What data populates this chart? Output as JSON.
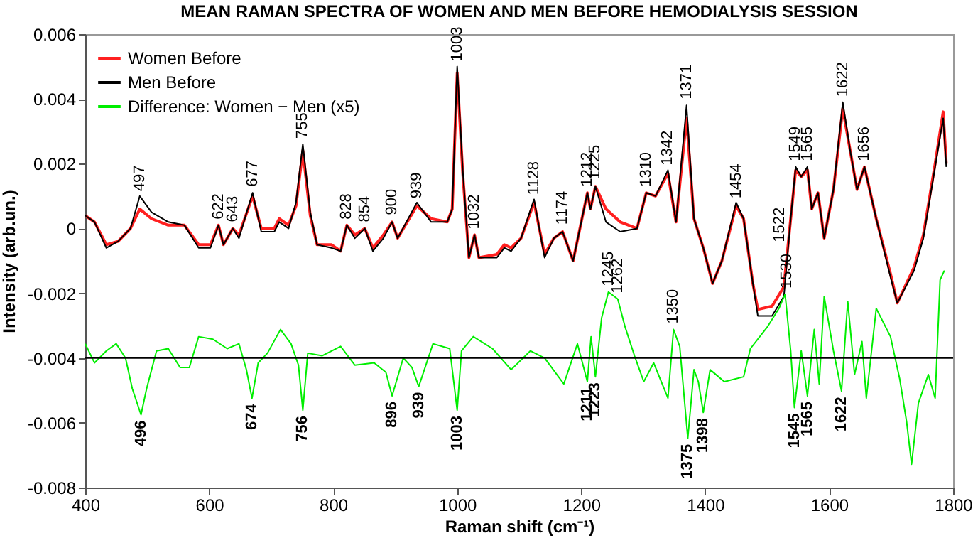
{
  "chart_data": {
    "type": "line",
    "title": "MEAN RAMAN SPECTRA OF WOMEN AND MEN BEFORE HEMODIALYSIS SESSION",
    "xlabel": "Raman shift (cm⁻¹)",
    "ylabel": "Intensity (arb.un.)",
    "xlim": [
      400,
      1800
    ],
    "xticks": [
      400,
      600,
      800,
      1000,
      1200,
      1400,
      1600,
      1800
    ],
    "ylim": [
      -0.008,
      0.006
    ],
    "yticks": [
      -0.008,
      -0.006,
      -0.004,
      -0.002,
      0,
      0.002,
      0.004,
      0.006
    ],
    "grid": false,
    "legend": "top left",
    "series": [
      {
        "name": "Women Before",
        "color": "#ff2020",
        "x": [
          400,
          415,
          434,
          453,
          473,
          488,
          507,
          534,
          560,
          583,
          602,
          615,
          623,
          638,
          648,
          670,
          684,
          705,
          713,
          728,
          740,
          751,
          763,
          774,
          797,
          812,
          822,
          835,
          851,
          864,
          881,
          895,
          904,
          935,
          958,
          984,
          992,
          1000,
          1009,
          1019,
          1028,
          1035,
          1064,
          1076,
          1087,
          1103,
          1124,
          1141,
          1156,
          1170,
          1187,
          1210,
          1215,
          1223,
          1240,
          1263,
          1290,
          1305,
          1320,
          1340,
          1353,
          1370,
          1382,
          1397,
          1412,
          1427,
          1450,
          1462,
          1477,
          1485,
          1508,
          1527,
          1538,
          1546,
          1555,
          1565,
          1572,
          1582,
          1592,
          1607,
          1622,
          1634,
          1645,
          1657,
          1676,
          1699,
          1710,
          1737,
          1752,
          1771,
          1784,
          1789
        ],
        "values": [
          0.0004,
          0.0002,
          -0.0005,
          -0.0004,
          0.0,
          0.0006,
          0.0003,
          0.0001,
          0.0001,
          -0.0005,
          -0.0005,
          0.0001,
          -0.0005,
          0.0,
          -0.0002,
          0.001,
          0.0,
          0.0,
          0.0003,
          0.0001,
          0.0007,
          0.0024,
          0.0004,
          -0.0005,
          -0.0005,
          -0.0007,
          0.0001,
          -0.0002,
          0.0,
          -0.0006,
          -0.0002,
          0.0002,
          -0.0003,
          0.0007,
          0.0003,
          0.0002,
          0.0006,
          0.0048,
          0.0017,
          -0.0009,
          -0.0002,
          -0.0009,
          -0.0008,
          -0.0005,
          -0.0006,
          -0.0003,
          0.0008,
          -0.0008,
          -0.0003,
          -0.0001,
          -0.001,
          0.0011,
          0.0006,
          0.0013,
          0.0006,
          0.0002,
          0.0,
          0.0011,
          0.001,
          0.0017,
          0.0002,
          0.0034,
          0.0003,
          -0.0006,
          -0.0017,
          -0.001,
          0.0007,
          0.0003,
          -0.0017,
          -0.0025,
          -0.0024,
          -0.0018,
          0.0003,
          0.0018,
          0.0016,
          0.0018,
          0.0006,
          0.0011,
          -0.0003,
          0.0012,
          0.0037,
          0.0024,
          0.0012,
          0.0019,
          0.0003,
          -0.0014,
          -0.0023,
          -0.0012,
          -0.0002,
          0.002,
          0.0036,
          0.002
        ]
      },
      {
        "name": "Men Before",
        "color": "#000000",
        "x": [
          400,
          415,
          434,
          453,
          473,
          488,
          507,
          534,
          560,
          583,
          602,
          615,
          623,
          638,
          648,
          670,
          684,
          705,
          713,
          728,
          740,
          751,
          763,
          774,
          797,
          812,
          822,
          835,
          851,
          864,
          881,
          895,
          904,
          935,
          958,
          984,
          992,
          1000,
          1009,
          1019,
          1028,
          1035,
          1064,
          1076,
          1087,
          1103,
          1124,
          1141,
          1156,
          1170,
          1187,
          1210,
          1215,
          1223,
          1240,
          1263,
          1290,
          1305,
          1320,
          1340,
          1353,
          1370,
          1382,
          1397,
          1412,
          1427,
          1450,
          1462,
          1477,
          1485,
          1508,
          1527,
          1538,
          1546,
          1555,
          1565,
          1572,
          1582,
          1592,
          1607,
          1622,
          1634,
          1645,
          1657,
          1676,
          1699,
          1710,
          1737,
          1752,
          1771,
          1784,
          1789
        ],
        "values": [
          0.0004,
          0.0002,
          -0.0006,
          -0.0004,
          0.0,
          0.001,
          0.0005,
          0.0002,
          0.0001,
          -0.0006,
          -0.0006,
          0.0001,
          -0.0005,
          0.0,
          -0.0003,
          0.0011,
          -0.0001,
          -0.0001,
          0.0002,
          0.0,
          0.0008,
          0.0026,
          0.0005,
          -0.0005,
          -0.0006,
          -0.0007,
          0.0001,
          -0.0003,
          0.0,
          -0.0007,
          -0.0003,
          0.0002,
          -0.0003,
          0.0008,
          0.0002,
          0.0002,
          0.0006,
          0.005,
          0.0018,
          -0.0009,
          -0.0002,
          -0.0009,
          -0.0009,
          -0.0006,
          -0.0007,
          -0.0003,
          0.0009,
          -0.0009,
          -0.0003,
          -0.0001,
          -0.001,
          0.0011,
          0.0006,
          0.0013,
          0.0002,
          -0.0001,
          0.0,
          0.0011,
          0.001,
          0.0018,
          0.0002,
          0.0038,
          0.0003,
          -0.0006,
          -0.0017,
          -0.001,
          0.0008,
          0.0003,
          -0.0017,
          -0.0027,
          -0.0027,
          -0.0021,
          0.0003,
          0.0019,
          0.0016,
          0.0019,
          0.0006,
          0.0011,
          -0.0003,
          0.0012,
          0.0039,
          0.0024,
          0.0012,
          0.0019,
          0.0003,
          -0.0015,
          -0.0023,
          -0.0013,
          -0.0003,
          0.0019,
          0.0034,
          0.0019
        ]
      },
      {
        "name": "Difference: Women − Men (x5)",
        "color": "#00ee00",
        "x": [
          400,
          415,
          434,
          450,
          465,
          476,
          490,
          499,
          515,
          534,
          553,
          568,
          583,
          606,
          629,
          648,
          660,
          669,
          679,
          694,
          715,
          732,
          744,
          751,
          759,
          782,
          812,
          835,
          866,
          885,
          895,
          913,
          927,
          938,
          961,
          988,
          1000,
          1007,
          1026,
          1057,
          1087,
          1118,
          1141,
          1172,
          1194,
          1210,
          1216,
          1223,
          1233,
          1244,
          1259,
          1271,
          1286,
          1301,
          1317,
          1340,
          1349,
          1359,
          1372,
          1382,
          1389,
          1397,
          1408,
          1431,
          1462,
          1473,
          1500,
          1519,
          1529,
          1538,
          1544,
          1555,
          1565,
          1576,
          1584,
          1592,
          1607,
          1620,
          1630,
          1641,
          1653,
          1660,
          1676,
          1699,
          1714,
          1725,
          1733,
          1744,
          1760,
          1771,
          1779,
          1786
        ],
        "values": [
          -0.00356,
          -0.00415,
          -0.00378,
          -0.00356,
          -0.004,
          -0.00495,
          -0.00575,
          -0.00495,
          -0.00378,
          -0.00371,
          -0.00429,
          -0.00429,
          -0.00334,
          -0.00342,
          -0.00371,
          -0.00356,
          -0.00436,
          -0.00524,
          -0.00415,
          -0.00385,
          -0.00312,
          -0.00356,
          -0.00422,
          -0.00561,
          -0.00385,
          -0.00393,
          -0.00364,
          -0.00422,
          -0.00415,
          -0.00444,
          -0.00517,
          -0.004,
          -0.00429,
          -0.00488,
          -0.00356,
          -0.00371,
          -0.00561,
          -0.00378,
          -0.00334,
          -0.00371,
          -0.00436,
          -0.00378,
          -0.004,
          -0.0048,
          -0.00356,
          -0.00473,
          -0.00334,
          -0.00458,
          -0.00276,
          -0.00196,
          -0.00218,
          -0.00305,
          -0.00393,
          -0.00473,
          -0.00415,
          -0.00524,
          -0.00312,
          -0.00364,
          -0.00648,
          -0.00436,
          -0.00473,
          -0.00568,
          -0.00436,
          -0.00473,
          -0.00458,
          -0.00371,
          -0.00305,
          -0.00247,
          -0.00203,
          -0.00378,
          -0.00553,
          -0.00378,
          -0.00517,
          -0.00312,
          -0.0048,
          -0.0021,
          -0.00378,
          -0.00502,
          -0.00225,
          -0.00451,
          -0.00349,
          -0.00524,
          -0.00247,
          -0.00334,
          -0.00466,
          -0.00597,
          -0.00728,
          -0.00539,
          -0.00451,
          -0.00524,
          -0.00159,
          -0.0013
        ]
      }
    ],
    "ref_lines": [
      {
        "axis": "y",
        "value": -0.004,
        "color": "#000000"
      }
    ],
    "annotations": [
      {
        "text": "497",
        "x": 488,
        "y": 0.00097
      },
      {
        "text": "622",
        "x": 615,
        "y": 0.0001
      },
      {
        "text": "643",
        "x": 638,
        "y": 2e-05
      },
      {
        "text": "677",
        "x": 670,
        "y": 0.00111
      },
      {
        "text": "755",
        "x": 751,
        "y": 0.0026
      },
      {
        "text": "828",
        "x": 822,
        "y": 0.0001
      },
      {
        "text": "854",
        "x": 851,
        "y": 2e-05
      },
      {
        "text": "900",
        "x": 895,
        "y": 0.00024
      },
      {
        "text": "939",
        "x": 935,
        "y": 0.00075
      },
      {
        "text": "1003",
        "x": 1000,
        "y": 0.00498
      },
      {
        "text": "1032",
        "x": 1028,
        "y": -0.0002
      },
      {
        "text": "1128",
        "x": 1124,
        "y": 0.00086
      },
      {
        "text": "1174",
        "x": 1170,
        "y": -6e-05
      },
      {
        "text": "1212",
        "x": 1210,
        "y": 0.00111
      },
      {
        "text": "1225",
        "x": 1223,
        "y": 0.00133
      },
      {
        "text": "1310",
        "x": 1305,
        "y": 0.00111
      },
      {
        "text": "1342",
        "x": 1340,
        "y": 0.00177
      },
      {
        "text": "1371",
        "x": 1370,
        "y": 0.00381
      },
      {
        "text": "1454",
        "x": 1450,
        "y": 0.00075
      },
      {
        "text": "1522",
        "x": 1520,
        "y": -0.0006
      },
      {
        "text": "1549",
        "x": 1546,
        "y": 0.0019
      },
      {
        "text": "1565",
        "x": 1565,
        "y": 0.0019
      },
      {
        "text": "1622",
        "x": 1622,
        "y": 0.00389
      },
      {
        "text": "1656",
        "x": 1657,
        "y": 0.0019
      },
      {
        "text": "496",
        "x": 490,
        "y": -0.00575
      },
      {
        "text": "674",
        "x": 669,
        "y": -0.00524
      },
      {
        "text": "756",
        "x": 751,
        "y": -0.00561
      },
      {
        "text": "896",
        "x": 895,
        "y": -0.00517
      },
      {
        "text": "939",
        "x": 938,
        "y": -0.00488
      },
      {
        "text": "1003",
        "x": 1000,
        "y": -0.00561
      },
      {
        "text": "1211",
        "x": 1210,
        "y": -0.00473
      },
      {
        "text": "1223",
        "x": 1223,
        "y": -0.00458
      },
      {
        "text": "1245",
        "x": 1244,
        "y": -0.00196
      },
      {
        "text": "1262",
        "x": 1259,
        "y": -0.00218
      },
      {
        "text": "1350",
        "x": 1349,
        "y": -0.00312
      },
      {
        "text": "1375",
        "x": 1372,
        "y": -0.00648
      },
      {
        "text": "1398",
        "x": 1397,
        "y": -0.00568
      },
      {
        "text": "1530",
        "x": 1532,
        "y": -0.00203
      },
      {
        "text": "1545",
        "x": 1544,
        "y": -0.00553
      },
      {
        "text": "1565",
        "x": 1565,
        "y": -0.00517
      },
      {
        "text": "1622",
        "x": 1620,
        "y": -0.00502
      }
    ]
  }
}
